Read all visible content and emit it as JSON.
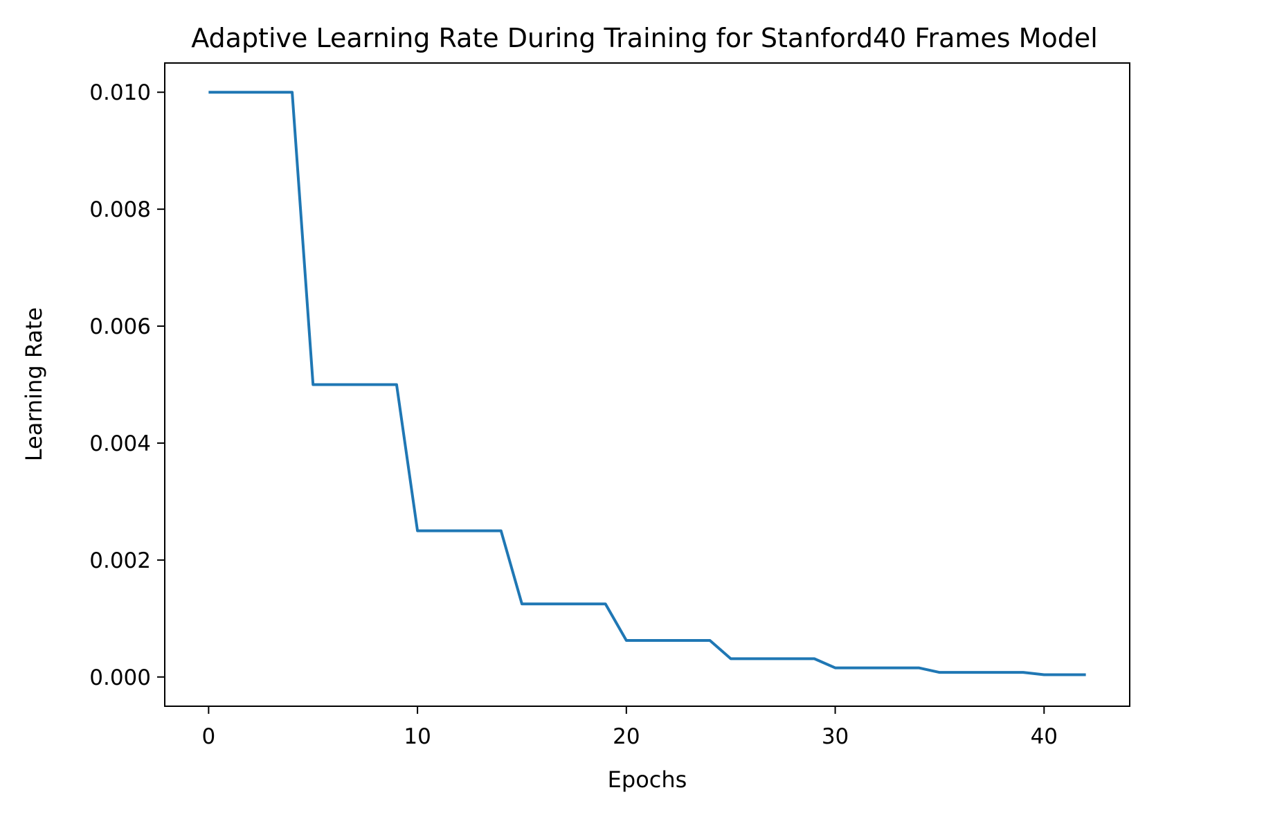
{
  "chart_data": {
    "type": "line",
    "title": "Adaptive Learning Rate During Training for Stanford40 Frames Model",
    "xlabel": "Epochs",
    "ylabel": "Learning Rate",
    "xlim": [
      -2.1,
      44.1
    ],
    "ylim": [
      -0.0005,
      0.0105
    ],
    "xticks": [
      0,
      10,
      20,
      30,
      40
    ],
    "xtick_labels": [
      "0",
      "10",
      "20",
      "30",
      "40"
    ],
    "yticks": [
      0.0,
      0.002,
      0.004,
      0.006,
      0.008,
      0.01
    ],
    "ytick_labels": [
      "0.000",
      "0.002",
      "0.004",
      "0.006",
      "0.008",
      "0.010"
    ],
    "grid": false,
    "series": [
      {
        "color": "#1f77b4",
        "x": [
          0,
          1,
          2,
          3,
          4,
          5,
          6,
          7,
          8,
          9,
          10,
          11,
          12,
          13,
          14,
          15,
          16,
          17,
          18,
          19,
          20,
          21,
          22,
          23,
          24,
          25,
          26,
          27,
          28,
          29,
          30,
          31,
          32,
          33,
          34,
          35,
          36,
          37,
          38,
          39,
          40,
          41,
          42
        ],
        "y": [
          0.01,
          0.01,
          0.01,
          0.01,
          0.01,
          0.005,
          0.005,
          0.005,
          0.005,
          0.005,
          0.0025,
          0.0025,
          0.0025,
          0.0025,
          0.0025,
          0.00125,
          0.00125,
          0.00125,
          0.00125,
          0.00125,
          0.000625,
          0.000625,
          0.000625,
          0.000625,
          0.000625,
          0.0003125,
          0.0003125,
          0.0003125,
          0.0003125,
          0.0003125,
          0.00015625,
          0.00015625,
          0.00015625,
          0.00015625,
          0.00015625,
          7.8125e-05,
          7.8125e-05,
          7.8125e-05,
          7.8125e-05,
          7.8125e-05,
          3.90625e-05,
          3.90625e-05,
          3.90625e-05
        ]
      }
    ]
  }
}
